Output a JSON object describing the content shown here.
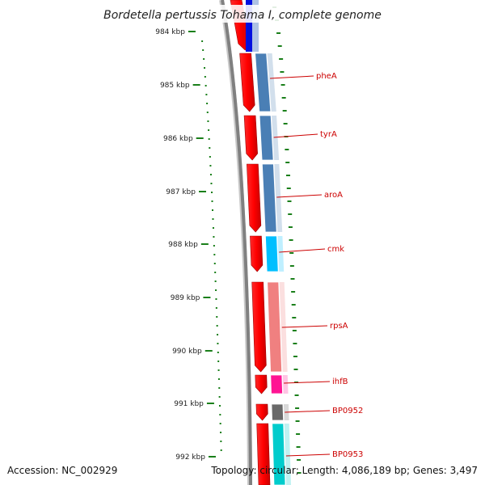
{
  "title": "Bordetella pertussis Tohama I, complete genome",
  "accession": "Accession: NC_002929",
  "summary": "Topology: circular; Length: 4,086,189 bp; Genes: 3,497",
  "ticks": [
    "984 kbp",
    "985 kbp",
    "986 kbp",
    "987 kbp",
    "988 kbp",
    "989 kbp",
    "990 kbp",
    "991 kbp",
    "992 kbp"
  ],
  "genes": [
    {
      "name": "pheA",
      "color": "#4a7fb5"
    },
    {
      "name": "tyrA",
      "color": "#4a7fb5"
    },
    {
      "name": "aroA",
      "color": "#4a7fb5"
    },
    {
      "name": "cmk",
      "color": "#00bfff"
    },
    {
      "name": "rpsA",
      "color": "#f08080"
    },
    {
      "name": "ihfB",
      "color": "#ff1493"
    },
    {
      "name": "BP0952",
      "color": "#696969"
    },
    {
      "name": "BP0953",
      "color": "#00cccc"
    }
  ],
  "colors": {
    "cds": "#ff0000",
    "backbone": "#808080",
    "gc": "#1a7f1a",
    "label_line": "#cc0000"
  }
}
